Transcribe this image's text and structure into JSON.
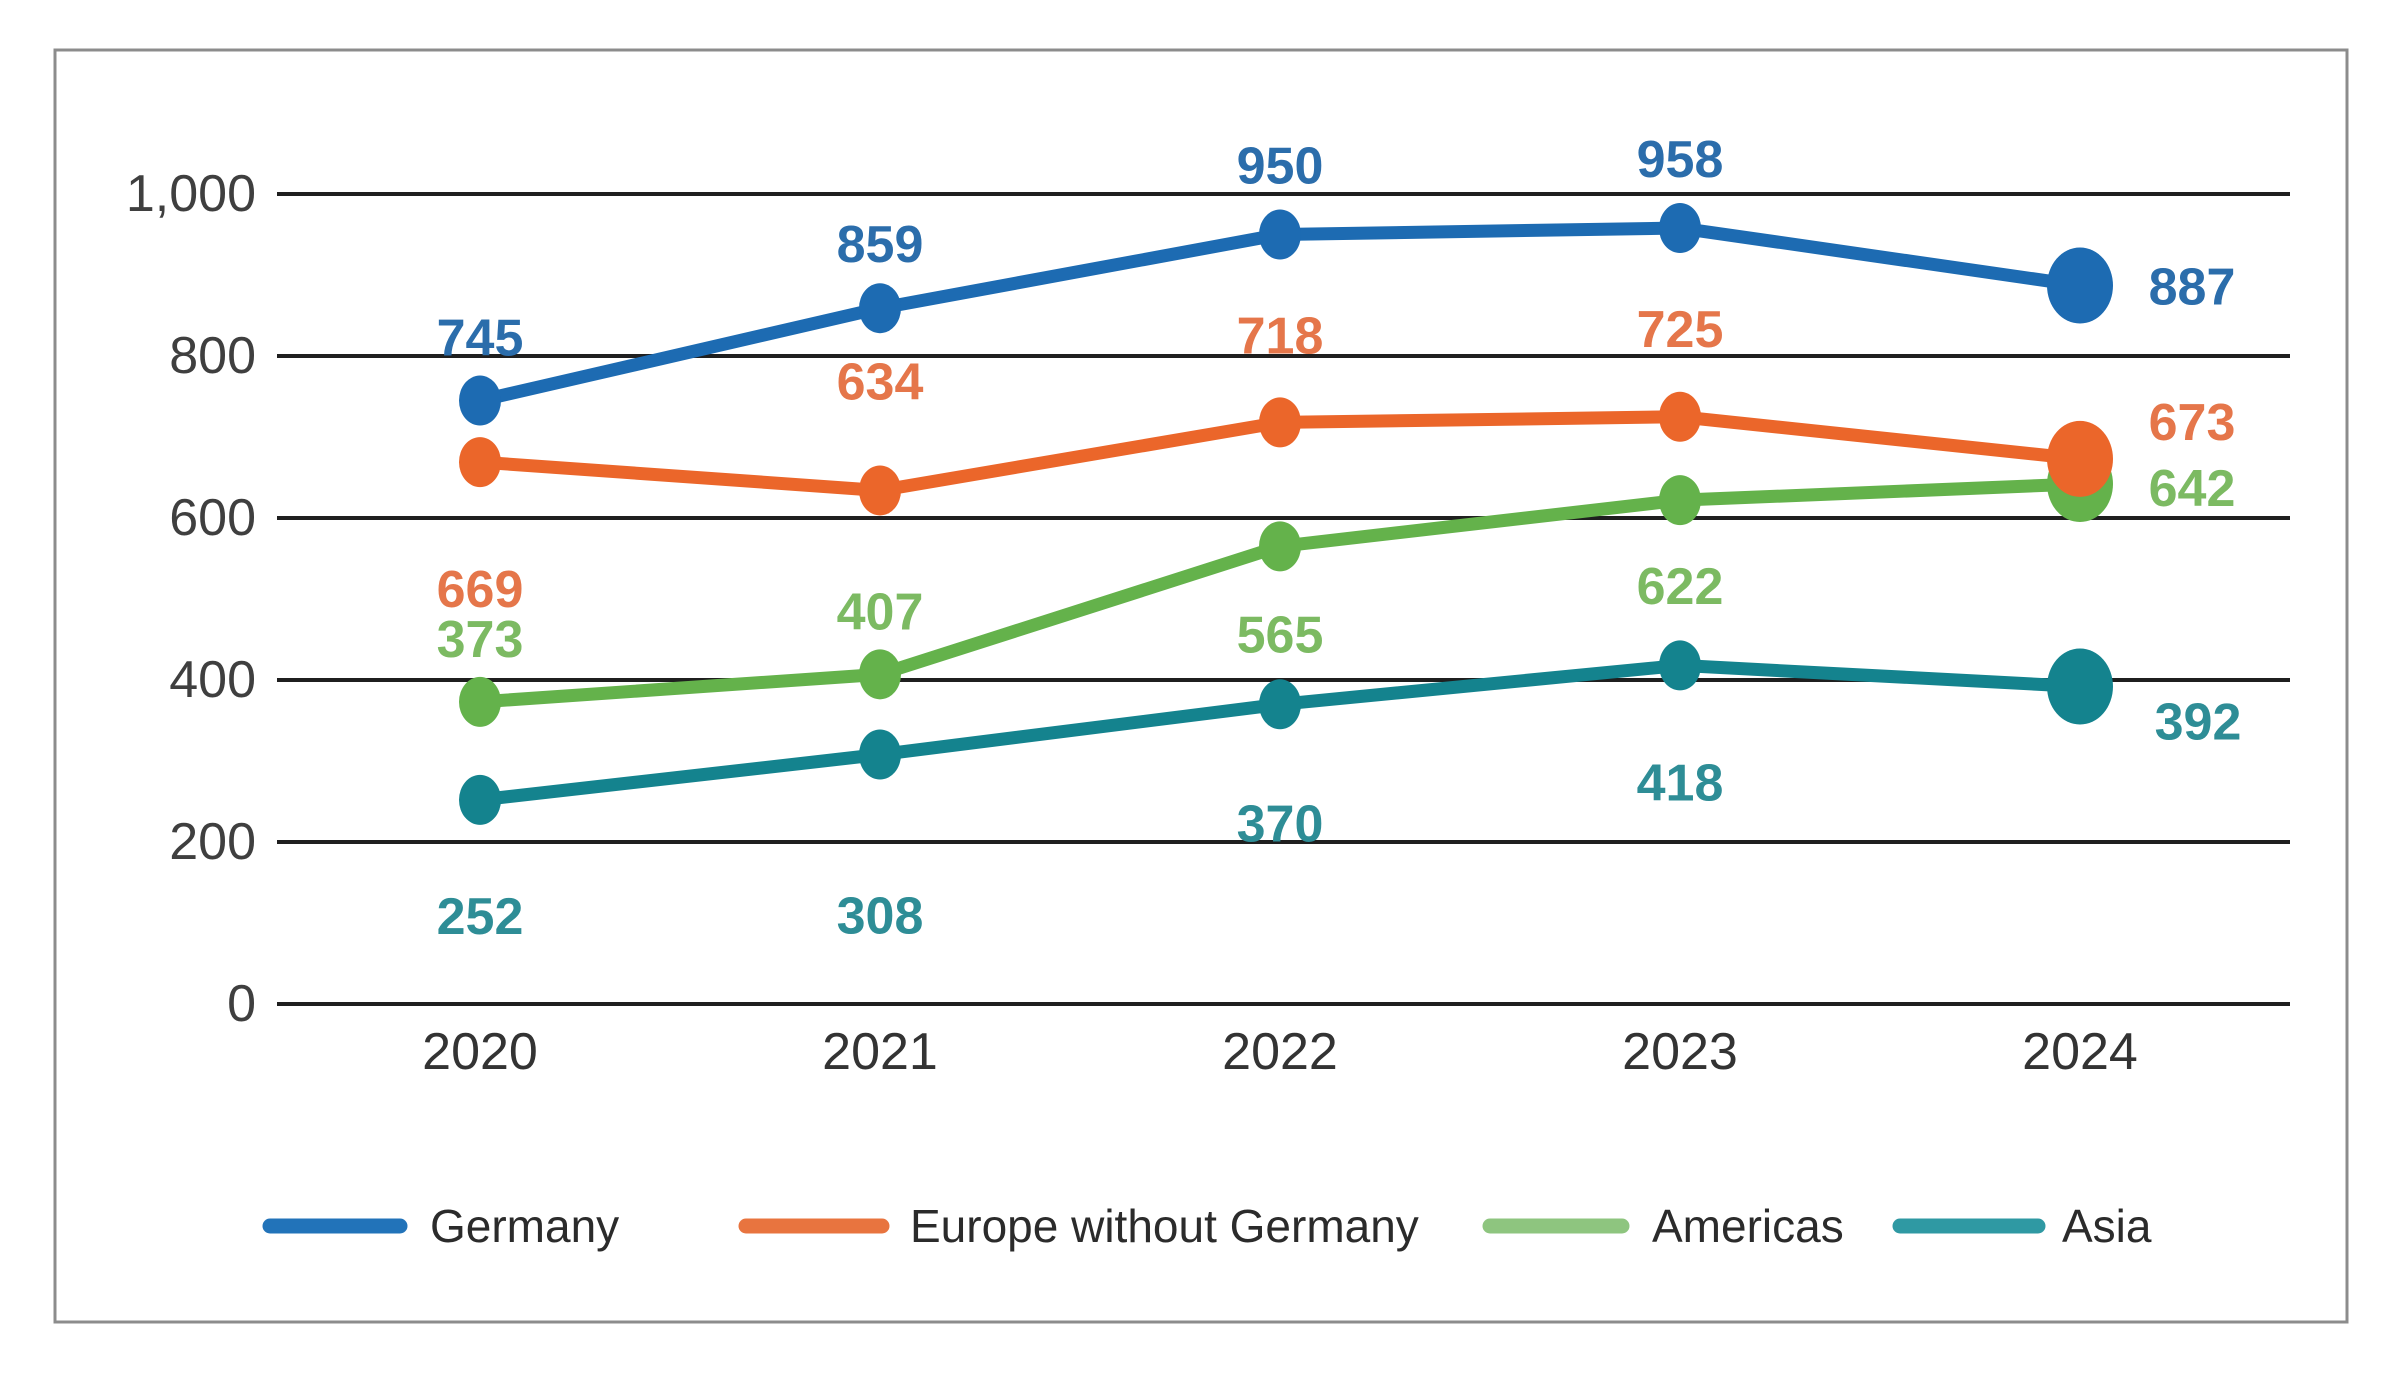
{
  "style": {
    "background": "#ffffff",
    "frame_border_color": "#8c8c8c",
    "grid_color": "#1f1f1f",
    "axis_text_color": "#3f3f3f",
    "x_label_color": "#333333",
    "legend_text_color": "#2b2b2b"
  },
  "chart_data": {
    "type": "line",
    "title": "",
    "xlabel": "",
    "ylabel": "",
    "x_labels": [
      "2020",
      "2021",
      "2022",
      "2023",
      "2024"
    ],
    "ylim": [
      0,
      1000
    ],
    "grid": true,
    "legend_position": "bottom",
    "y_ticks": [
      {
        "label": "1,000",
        "value": 1000
      },
      {
        "label": "800",
        "value": 800
      },
      {
        "label": "600",
        "value": 600
      },
      {
        "label": "400",
        "value": 400
      },
      {
        "label": "200",
        "value": 200
      },
      {
        "label": "0",
        "value": 0
      }
    ],
    "series": [
      {
        "name": "Germany",
        "line_color": "#1d6bb2",
        "label_color": "#2b6dab",
        "legend_swatch_color": "#2273b9",
        "values": [
          745,
          859,
          950,
          958,
          887
        ],
        "label_offsets": [
          [
            0,
            -62
          ],
          [
            0,
            -63
          ],
          [
            0,
            -68
          ],
          [
            0,
            -68
          ],
          [
            112,
            2
          ]
        ]
      },
      {
        "name": "Europe without Germany",
        "line_color": "#eb662a",
        "label_color": "#e5764a",
        "legend_swatch_color": "#e8743f",
        "values": [
          669,
          634,
          718,
          725,
          673
        ],
        "label_offsets": [
          [
            0,
            128
          ],
          [
            0,
            -108
          ],
          [
            0,
            -86
          ],
          [
            0,
            -87
          ],
          [
            112,
            -36
          ]
        ]
      },
      {
        "name": "Americas",
        "line_color": "#64b24b",
        "label_color": "#7cba62",
        "legend_swatch_color": "#8ec57f",
        "values": [
          373,
          407,
          565,
          622,
          642
        ],
        "label_offsets": [
          [
            0,
            -62
          ],
          [
            0,
            -62
          ],
          [
            0,
            89
          ],
          [
            0,
            87
          ],
          [
            112,
            5
          ]
        ]
      },
      {
        "name": "Asia",
        "line_color": "#14838e",
        "label_color": "#2e8d96",
        "legend_swatch_color": "#2f99a3",
        "values": [
          252,
          308,
          370,
          418,
          392
        ],
        "label_offsets": [
          [
            0,
            117
          ],
          [
            0,
            162
          ],
          [
            0,
            120
          ],
          [
            0,
            118
          ],
          [
            118,
            36
          ]
        ]
      }
    ]
  }
}
